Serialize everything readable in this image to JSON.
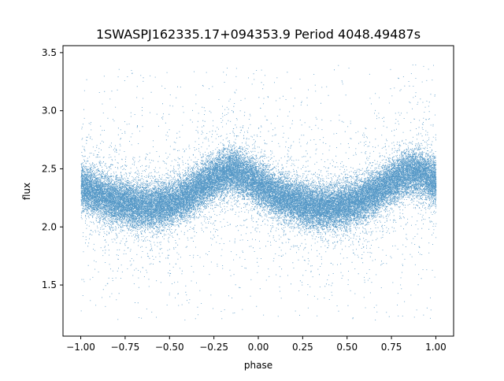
{
  "chart_data": {
    "type": "scatter",
    "title": "1SWASPJ162335.17+094353.9 Period 4048.49487s",
    "xlabel": "phase",
    "ylabel": "flux",
    "xlim": [
      -1.1,
      1.1
    ],
    "ylim": [
      1.06,
      3.56
    ],
    "xticks": [
      -1.0,
      -0.75,
      -0.5,
      -0.25,
      0.0,
      0.25,
      0.5,
      0.75,
      1.0
    ],
    "xtick_labels": [
      "−1.00",
      "−0.75",
      "−0.50",
      "−0.25",
      "0.00",
      "0.25",
      "0.50",
      "0.75",
      "1.00"
    ],
    "yticks": [
      1.5,
      2.0,
      2.5,
      3.0,
      3.5
    ],
    "ytick_labels": [
      "1.5",
      "2.0",
      "2.5",
      "3.0",
      "3.5"
    ],
    "grid": false,
    "legend": "none",
    "marker_color": "#1f77b4",
    "series": [
      {
        "x": [
          -1.0,
          -0.9,
          -0.8,
          -0.7,
          -0.6,
          -0.5,
          -0.4,
          -0.3,
          -0.2,
          -0.15,
          -0.1,
          0.0,
          0.1,
          0.2,
          0.3,
          0.4,
          0.5,
          0.6,
          0.7,
          0.8,
          0.85,
          0.9,
          1.0
        ],
        "y": [
          2.35,
          2.27,
          2.22,
          2.19,
          2.18,
          2.2,
          2.27,
          2.38,
          2.46,
          2.48,
          2.46,
          2.37,
          2.28,
          2.22,
          2.18,
          2.17,
          2.19,
          2.25,
          2.34,
          2.44,
          2.47,
          2.47,
          2.4
        ]
      }
    ]
  }
}
